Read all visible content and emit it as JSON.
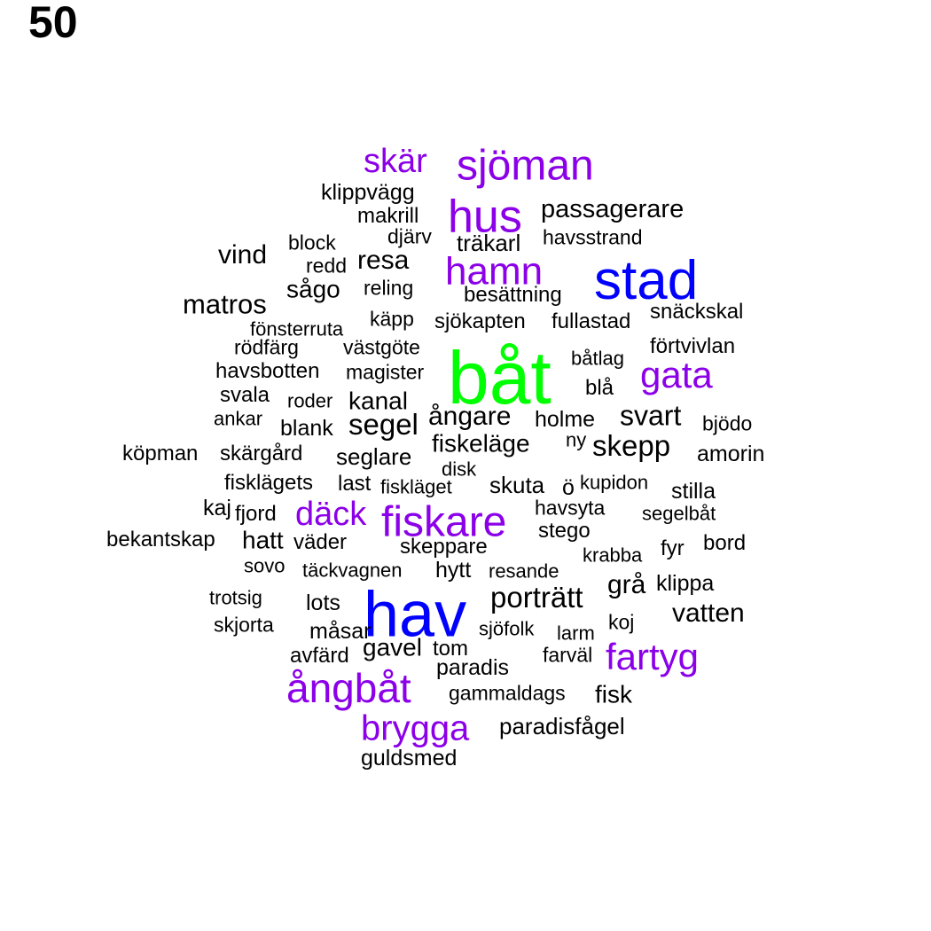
{
  "number_label": "50",
  "colors": {
    "default": "#000000",
    "purple": "#8b00e8",
    "blue": "#0000ff",
    "green": "#00ff00"
  },
  "words": [
    {
      "text": "båt",
      "color": "green"
    },
    {
      "text": "hav",
      "color": "blue"
    },
    {
      "text": "stad",
      "color": "blue"
    },
    {
      "text": "fiskare",
      "color": "purple"
    },
    {
      "text": "sjöman",
      "color": "purple"
    },
    {
      "text": "hus",
      "color": "purple"
    },
    {
      "text": "hamn",
      "color": "purple"
    },
    {
      "text": "ångbåt",
      "color": "purple"
    },
    {
      "text": "fartyg",
      "color": "purple"
    },
    {
      "text": "gata",
      "color": "purple"
    },
    {
      "text": "skär",
      "color": "purple"
    },
    {
      "text": "brygga",
      "color": "purple"
    },
    {
      "text": "däck",
      "color": "purple"
    },
    {
      "text": "klippvägg",
      "color": "default"
    },
    {
      "text": "makrill",
      "color": "default"
    },
    {
      "text": "passagerare",
      "color": "default"
    },
    {
      "text": "djärv",
      "color": "default"
    },
    {
      "text": "träkarl",
      "color": "default"
    },
    {
      "text": "havsstrand",
      "color": "default"
    },
    {
      "text": "block",
      "color": "default"
    },
    {
      "text": "vind",
      "color": "default"
    },
    {
      "text": "redd",
      "color": "default"
    },
    {
      "text": "resa",
      "color": "default"
    },
    {
      "text": "sågo",
      "color": "default"
    },
    {
      "text": "reling",
      "color": "default"
    },
    {
      "text": "besättning",
      "color": "default"
    },
    {
      "text": "matros",
      "color": "default"
    },
    {
      "text": "fönsterruta",
      "color": "default"
    },
    {
      "text": "käpp",
      "color": "default"
    },
    {
      "text": "sjökapten",
      "color": "default"
    },
    {
      "text": "fullastad",
      "color": "default"
    },
    {
      "text": "snäckskal",
      "color": "default"
    },
    {
      "text": "rödfärg",
      "color": "default"
    },
    {
      "text": "västgöte",
      "color": "default"
    },
    {
      "text": "förtvivlan",
      "color": "default"
    },
    {
      "text": "båtlag",
      "color": "default"
    },
    {
      "text": "havsbotten",
      "color": "default"
    },
    {
      "text": "magister",
      "color": "default"
    },
    {
      "text": "blå",
      "color": "default"
    },
    {
      "text": "svala",
      "color": "default"
    },
    {
      "text": "roder",
      "color": "default"
    },
    {
      "text": "kanal",
      "color": "default"
    },
    {
      "text": "ankar",
      "color": "default"
    },
    {
      "text": "blank",
      "color": "default"
    },
    {
      "text": "segel",
      "color": "default"
    },
    {
      "text": "ångare",
      "color": "default"
    },
    {
      "text": "holme",
      "color": "default"
    },
    {
      "text": "svart",
      "color": "default"
    },
    {
      "text": "bjödo",
      "color": "default"
    },
    {
      "text": "fiskeläge",
      "color": "default"
    },
    {
      "text": "ny",
      "color": "default"
    },
    {
      "text": "skepp",
      "color": "default"
    },
    {
      "text": "köpman",
      "color": "default"
    },
    {
      "text": "skärgård",
      "color": "default"
    },
    {
      "text": "seglare",
      "color": "default"
    },
    {
      "text": "amorin",
      "color": "default"
    },
    {
      "text": "disk",
      "color": "default"
    },
    {
      "text": "fisklägets",
      "color": "default"
    },
    {
      "text": "last",
      "color": "default"
    },
    {
      "text": "fiskläget",
      "color": "default"
    },
    {
      "text": "skuta",
      "color": "default"
    },
    {
      "text": "ö",
      "color": "default"
    },
    {
      "text": "kupidon",
      "color": "default"
    },
    {
      "text": "stilla",
      "color": "default"
    },
    {
      "text": "kaj",
      "color": "default"
    },
    {
      "text": "fjord",
      "color": "default"
    },
    {
      "text": "havsyta",
      "color": "default"
    },
    {
      "text": "segelbåt",
      "color": "default"
    },
    {
      "text": "bekantskap",
      "color": "default"
    },
    {
      "text": "hatt",
      "color": "default"
    },
    {
      "text": "väder",
      "color": "default"
    },
    {
      "text": "skeppare",
      "color": "default"
    },
    {
      "text": "stego",
      "color": "default"
    },
    {
      "text": "fyr",
      "color": "default"
    },
    {
      "text": "bord",
      "color": "default"
    },
    {
      "text": "krabba",
      "color": "default"
    },
    {
      "text": "sovo",
      "color": "default"
    },
    {
      "text": "täckvagnen",
      "color": "default"
    },
    {
      "text": "hytt",
      "color": "default"
    },
    {
      "text": "resande",
      "color": "default"
    },
    {
      "text": "grå",
      "color": "default"
    },
    {
      "text": "klippa",
      "color": "default"
    },
    {
      "text": "trotsig",
      "color": "default"
    },
    {
      "text": "lots",
      "color": "default"
    },
    {
      "text": "porträtt",
      "color": "default"
    },
    {
      "text": "vatten",
      "color": "default"
    },
    {
      "text": "skjorta",
      "color": "default"
    },
    {
      "text": "måsar",
      "color": "default"
    },
    {
      "text": "sjöfolk",
      "color": "default"
    },
    {
      "text": "larm",
      "color": "default"
    },
    {
      "text": "koj",
      "color": "default"
    },
    {
      "text": "avfärd",
      "color": "default"
    },
    {
      "text": "gavel",
      "color": "default"
    },
    {
      "text": "tom",
      "color": "default"
    },
    {
      "text": "farväl",
      "color": "default"
    },
    {
      "text": "paradis",
      "color": "default"
    },
    {
      "text": "gammaldags",
      "color": "default"
    },
    {
      "text": "fisk",
      "color": "default"
    },
    {
      "text": "paradisfågel",
      "color": "default"
    },
    {
      "text": "guldsmed",
      "color": "default"
    }
  ]
}
